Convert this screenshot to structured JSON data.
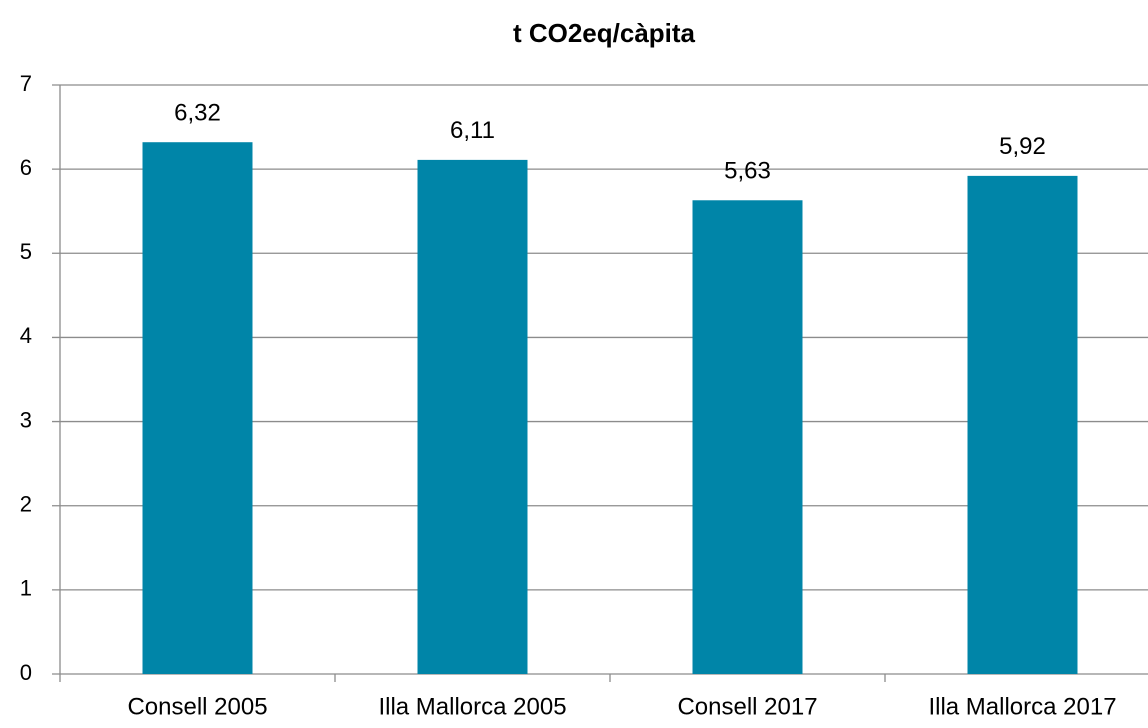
{
  "chart_data": {
    "type": "bar",
    "title": "t CO2eq/càpita",
    "categories": [
      "Consell 2005",
      "Illa Mallorca 2005",
      "Consell 2017",
      "Illa Mallorca 2017"
    ],
    "values": [
      6.32,
      6.11,
      5.63,
      5.92
    ],
    "value_labels": [
      "6,32",
      "6,11",
      "5,63",
      "5,92"
    ],
    "color": "#0085a8",
    "ylim": [
      0,
      7
    ],
    "yticks": [
      0,
      1,
      2,
      3,
      4,
      5,
      6,
      7
    ],
    "grid": true
  }
}
